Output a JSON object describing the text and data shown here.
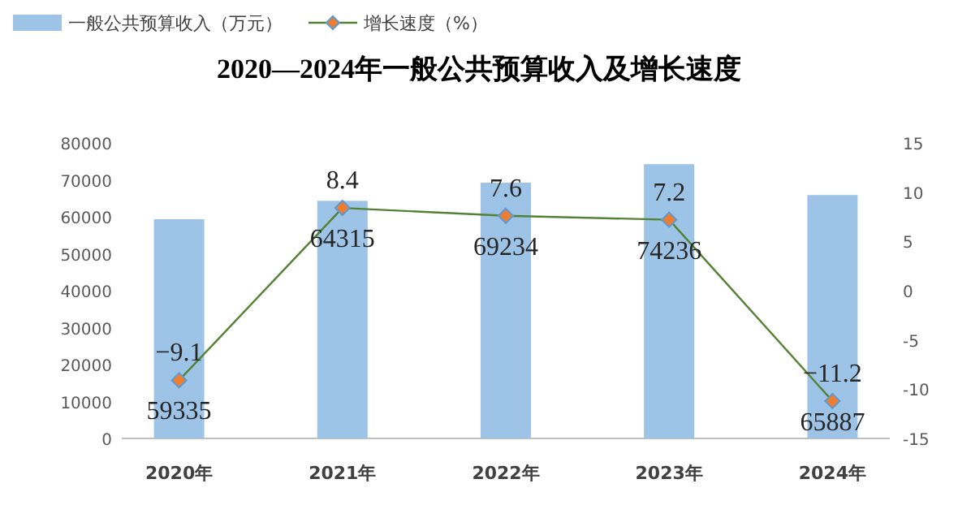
{
  "chart_data": {
    "type": "bar",
    "title": "2020—2024年一般公共预算收入及增长速度",
    "categories": [
      "2020年",
      "2021年",
      "2022年",
      "2023年",
      "2024年"
    ],
    "series": [
      {
        "name": "一般公共预算收入（万元）",
        "color": "#9dc3e6",
        "values": [
          59335,
          64315,
          69234,
          74236,
          65887
        ]
      },
      {
        "name": "增长速度（%）",
        "type": "line",
        "axis": "y2",
        "color": "#548235",
        "marker": "diamond",
        "values": [
          -9.1,
          8.4,
          7.6,
          7.2,
          -11.2
        ]
      }
    ],
    "ylim": [
      0,
      80000
    ],
    "yticks": [
      0,
      10000,
      20000,
      30000,
      40000,
      50000,
      60000,
      70000,
      80000
    ],
    "y2lim": [
      -15,
      15
    ],
    "y2ticks": [
      -15,
      -10,
      -5,
      0,
      5,
      10,
      15
    ],
    "data_labels": true,
    "legend": "top left",
    "grid": false
  }
}
